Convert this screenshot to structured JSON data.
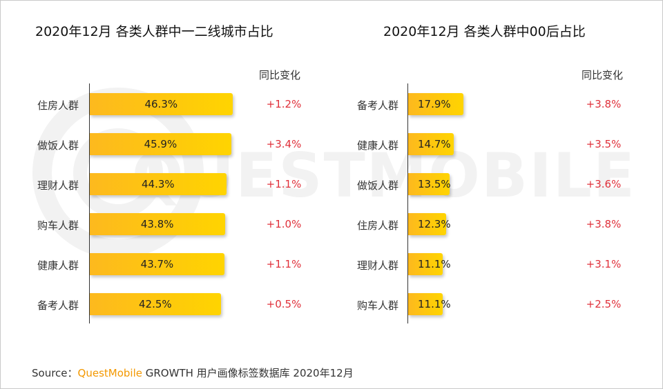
{
  "chart_data": [
    {
      "type": "bar",
      "orientation": "horizontal",
      "title": "2020年12月 各类人群中一二线城市占比",
      "categories": [
        "住房人群",
        "做饭人群",
        "理财人群",
        "购车人群",
        "健康人群",
        "备考人群"
      ],
      "values": [
        46.3,
        45.9,
        44.3,
        43.8,
        43.7,
        42.5
      ],
      "value_labels": [
        "46.3%",
        "45.9%",
        "44.3%",
        "43.8%",
        "43.7%",
        "42.5%"
      ],
      "yoy_header": "同比变化",
      "yoy_labels": [
        "+1.2%",
        "+3.4%",
        "+1.1%",
        "+1.0%",
        "+1.1%",
        "+0.5%"
      ],
      "xlim": [
        0,
        100
      ],
      "grid": false,
      "legend": "none",
      "bar_color": "#ffd400"
    },
    {
      "type": "bar",
      "orientation": "horizontal",
      "title": "2020年12月 各类人群中00后占比",
      "categories": [
        "备考人群",
        "健康人群",
        "做饭人群",
        "住房人群",
        "理财人群",
        "购车人群"
      ],
      "values": [
        17.9,
        14.7,
        13.5,
        12.3,
        11.1,
        11.1
      ],
      "value_labels": [
        "17.9%",
        "14.7%",
        "13.5%",
        "12.3%",
        "11.1%",
        "11.1%"
      ],
      "yoy_header": "同比变化",
      "yoy_labels": [
        "+3.8%",
        "+3.5%",
        "+3.6%",
        "+3.8%",
        "+3.1%",
        "+2.5%"
      ],
      "xlim": [
        0,
        100
      ],
      "grid": false,
      "legend": "none",
      "bar_color": "#ffd400"
    }
  ],
  "source": {
    "prefix": "Source：",
    "brand": "QuestMobile",
    "suffix": "GROWTH 用户画像标签数据库 2020年12月"
  },
  "watermark": {
    "text": "QUESTMOBILE",
    "color": "#f2f2f2"
  },
  "colors": {
    "positive": "#e0303a",
    "brand": "#f39800"
  }
}
